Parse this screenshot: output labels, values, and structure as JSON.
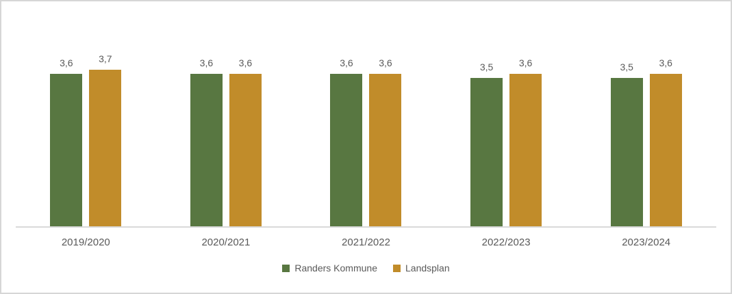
{
  "chart_data": {
    "type": "bar",
    "categories": [
      "2019/2020",
      "2020/2021",
      "2021/2022",
      "2022/2023",
      "2023/2024"
    ],
    "series": [
      {
        "name": "Randers Kommune",
        "color": "#587741",
        "values": [
          3.6,
          3.6,
          3.6,
          3.5,
          3.5
        ],
        "labels": [
          "3,6",
          "3,6",
          "3,6",
          "3,5",
          "3,5"
        ]
      },
      {
        "name": "Landsplan",
        "color": "#c18c2a",
        "values": [
          3.7,
          3.6,
          3.6,
          3.6,
          3.6
        ],
        "labels": [
          "3,7",
          "3,6",
          "3,6",
          "3,6",
          "3,6"
        ]
      }
    ],
    "title": "",
    "xlabel": "",
    "ylabel": "",
    "y_axis_visible": false,
    "gridlines": false,
    "data_labels": "above bars, decimal comma",
    "legend_position": "bottom",
    "axis_line_color": "#d9d9d9",
    "text_color": "#595959",
    "frame_border_color": "#d6d6d6"
  }
}
